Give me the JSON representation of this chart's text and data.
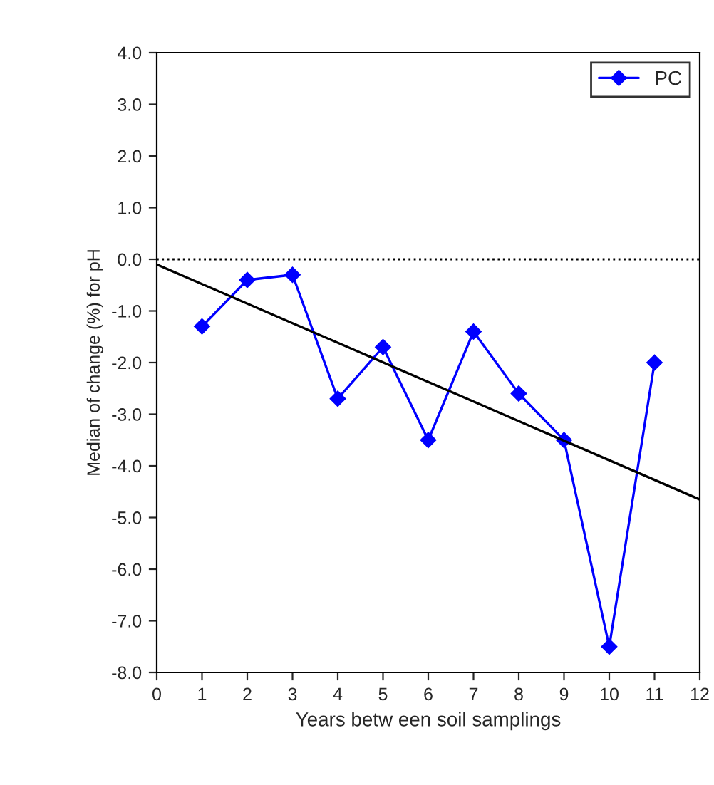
{
  "chart_data": {
    "type": "line",
    "xlabel": "Years betw een soil samplings",
    "ylabel": "Median of change (%) for pH",
    "x": [
      1,
      2,
      3,
      4,
      5,
      6,
      7,
      8,
      9,
      10,
      11
    ],
    "series": [
      {
        "name": "PC",
        "color": "#0000ff",
        "values": [
          -1.3,
          -0.4,
          -0.3,
          -2.7,
          -1.7,
          -3.5,
          -1.4,
          -2.6,
          -3.5,
          -7.5,
          -2.0
        ]
      },
      {
        "type": "line",
        "x": [
          0,
          12
        ],
        "values": [
          -0.1,
          -4.65
        ],
        "color": "#000000",
        "marker": "none"
      }
    ],
    "xlim": [
      0,
      12
    ],
    "xticks": [
      0,
      1,
      2,
      3,
      4,
      5,
      6,
      7,
      8,
      9,
      10,
      11,
      12
    ],
    "ylim": [
      -8,
      4
    ],
    "yticks": [
      {
        "value": 4,
        "label": "4.0"
      },
      {
        "value": 3,
        "label": "3.0"
      },
      {
        "value": 2,
        "label": "2.0"
      },
      {
        "value": 1,
        "label": "1.0"
      },
      {
        "value": 0,
        "label": "0.0"
      },
      {
        "value": -1,
        "label": "-1.0"
      },
      {
        "value": -2,
        "label": "-2.0"
      },
      {
        "value": -3,
        "label": "-3.0"
      },
      {
        "value": -4,
        "label": "-4.0"
      },
      {
        "value": -5,
        "label": "-5.0"
      },
      {
        "value": -6,
        "label": "-6.0"
      },
      {
        "value": -7,
        "label": "-7.0"
      },
      {
        "value": -8,
        "label": "-8.0"
      }
    ],
    "ref_lines": [
      {
        "axis": "y",
        "value": 0,
        "color": "#000000",
        "line_style": "dotted"
      }
    ],
    "marker": "diamond",
    "legend": "top right",
    "grid": false
  }
}
